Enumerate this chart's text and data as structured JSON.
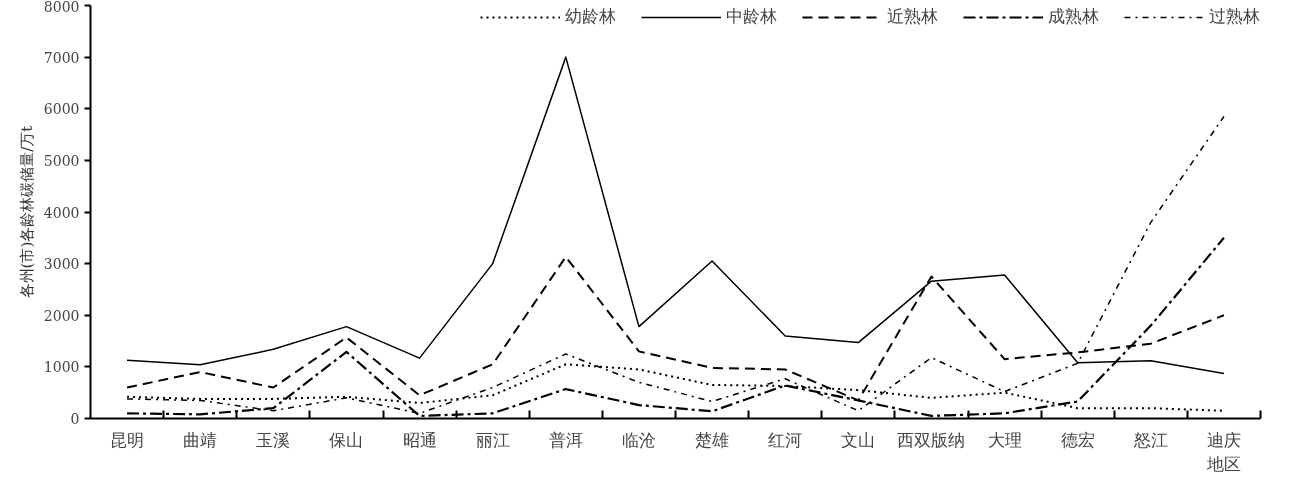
{
  "chart_data": {
    "type": "line",
    "ylabel": "各州(市)各龄林碳储量/万t",
    "categories": [
      "昆明",
      "曲靖",
      "玉溪",
      "保山",
      "昭通",
      "丽江",
      "普洱",
      "临沧",
      "楚雄",
      "红河",
      "文山",
      "西双版纳",
      "大理",
      "德宏",
      "怒江",
      "迪庆地区"
    ],
    "series": [
      {
        "name": "幼龄林",
        "color": "#000000",
        "line_style": "dotted",
        "values": [
          420,
          380,
          380,
          420,
          300,
          450,
          1050,
          950,
          650,
          630,
          550,
          400,
          500,
          200,
          200,
          150
        ]
      },
      {
        "name": "中龄林",
        "color": "#000000",
        "line_style": "solid",
        "values": [
          1130,
          1040,
          1340,
          1780,
          1170,
          3000,
          7000,
          1780,
          3050,
          1600,
          1470,
          2660,
          2780,
          1080,
          1120,
          870
        ]
      },
      {
        "name": "近熟林",
        "color": "#000000",
        "line_style": "dashed",
        "values": [
          600,
          900,
          600,
          1570,
          450,
          1050,
          3130,
          1300,
          980,
          950,
          350,
          2750,
          1150,
          1280,
          1450,
          2000
        ]
      },
      {
        "name": "成熟林",
        "color": "#000000",
        "line_style": "dashdot",
        "values": [
          100,
          80,
          200,
          1290,
          50,
          100,
          570,
          260,
          140,
          640,
          350,
          50,
          100,
          330,
          1800,
          3500
        ]
      },
      {
        "name": "过熟林",
        "color": "#000000",
        "line_style": "dashdotthin",
        "values": [
          380,
          350,
          150,
          400,
          100,
          600,
          1250,
          700,
          330,
          770,
          150,
          1180,
          520,
          1070,
          3800,
          5850
        ]
      }
    ],
    "ylim": [
      0,
      8000
    ],
    "yticks": [
      0,
      1000,
      2000,
      3000,
      4000,
      5000,
      6000,
      7000,
      8000
    ],
    "grid": false,
    "legend": "top",
    "marker": "none"
  }
}
